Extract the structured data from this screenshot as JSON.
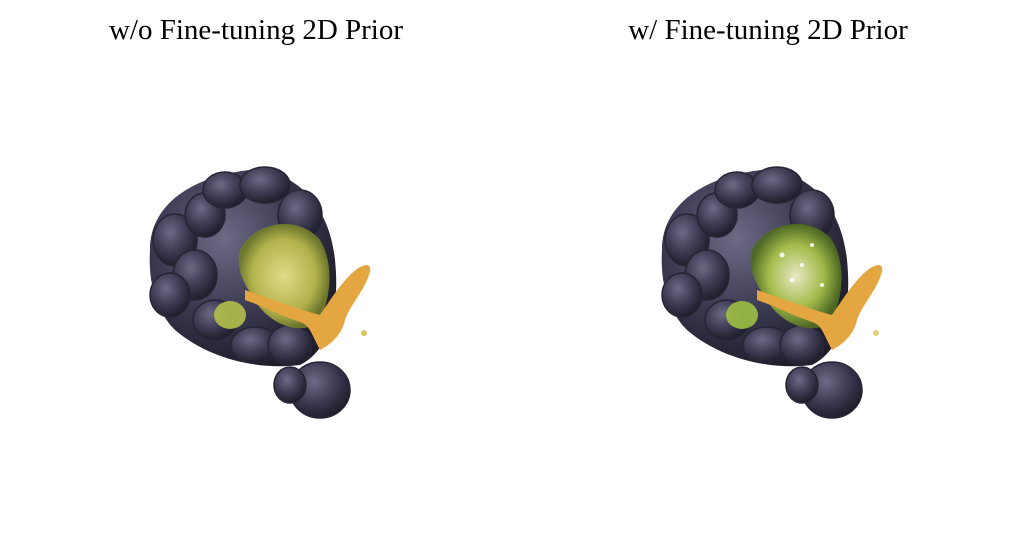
{
  "panels": [
    {
      "caption": "w/o Fine-tuning 2D Prior",
      "fruit_color": "#3b3a4f",
      "stem_color": "#e4a640",
      "flesh_color": "#c9c95a"
    },
    {
      "caption": "w/ Fine-tuning 2D Prior",
      "fruit_color": "#3b3a4f",
      "stem_color": "#e4a640",
      "flesh_color": "#a9c24a"
    }
  ]
}
